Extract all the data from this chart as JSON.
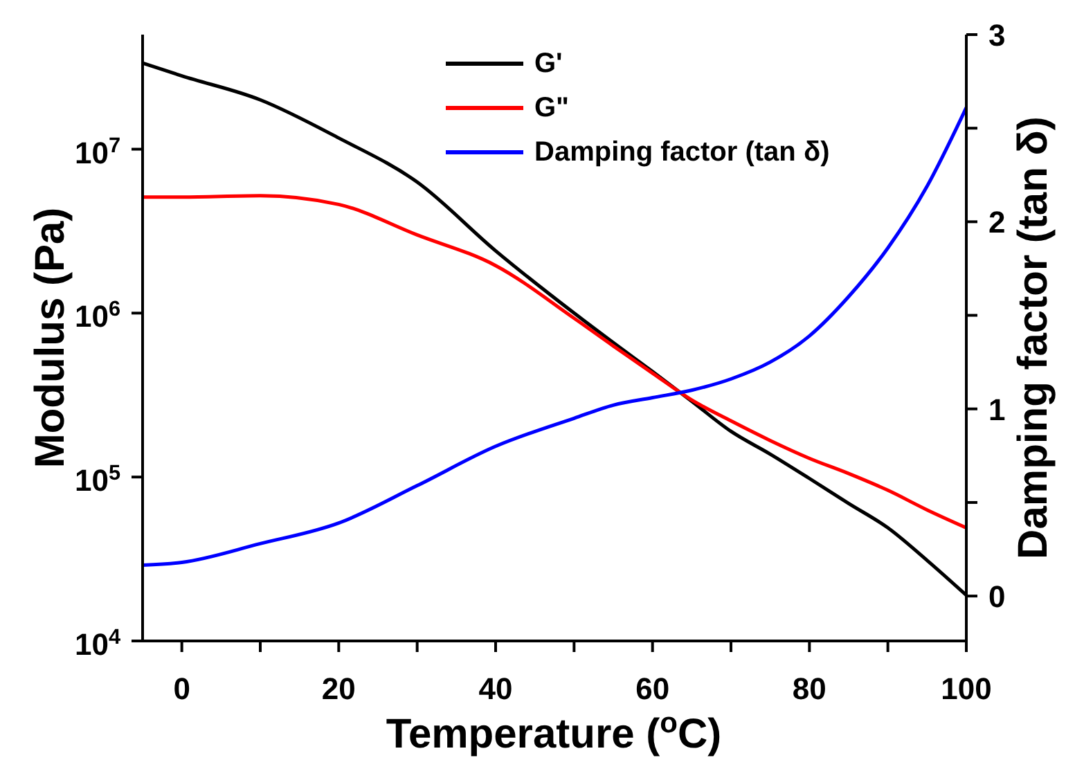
{
  "chart_data": {
    "type": "line",
    "xlabel": "Temperature ($^{o}$C)",
    "ylabel": "Modulus (Pa)",
    "y2label": "Damping factor (tan δ)",
    "x": [
      -5,
      0,
      10,
      20,
      30,
      40,
      50,
      55,
      60,
      65,
      70,
      75,
      80,
      85,
      90,
      95,
      100
    ],
    "series": [
      {
        "name": "G'",
        "color": "#000000",
        "values": [
          33500000,
          28000000,
          20000000,
          11700000,
          6300000,
          2400000,
          1000000,
          660000,
          440000,
          290000,
          190000,
          138000,
          98000,
          69000,
          49000,
          31000,
          19000
        ]
      },
      {
        "name": "G\"",
        "color": "#ff0000",
        "values": [
          5100000,
          5100000,
          5200000,
          4600000,
          3000000,
          1950000,
          930000,
          630000,
          430000,
          295000,
          220000,
          167000,
          130000,
          105000,
          83000,
          63000,
          49000
        ]
      },
      {
        "name": "Damping factor (tan δ)",
        "color": "#0000ff",
        "axis": "y2",
        "values": [
          0.165,
          0.18,
          0.28,
          0.39,
          0.59,
          0.8,
          0.95,
          1.02,
          1.06,
          1.1,
          1.16,
          1.25,
          1.39,
          1.6,
          1.86,
          2.19,
          2.61
        ]
      }
    ],
    "xlim": [
      -5,
      100
    ],
    "xticks": [
      0,
      {
        "value": 10,
        "label": null
      },
      20,
      {
        "value": 30,
        "label": null
      },
      40,
      {
        "value": 50,
        "label": null
      },
      60,
      {
        "value": 70,
        "label": null
      },
      80,
      {
        "value": 90,
        "label": null
      },
      100
    ],
    "log": "y",
    "ylim": [
      10000,
      50000000
    ],
    "yticks": [
      {
        "value": 10000,
        "label": "10$^{4}$"
      },
      {
        "value": 100000,
        "label": "10$^{5}$"
      },
      {
        "value": 1000000,
        "label": "10$^{6}$"
      },
      {
        "value": 10000000,
        "label": "10$^{7}$"
      }
    ],
    "y2lim": [
      -0.24,
      3
    ],
    "y2ticks": [
      0,
      {
        "value": 0.5,
        "label": null
      },
      1,
      {
        "value": 1.5,
        "label": null
      },
      2,
      {
        "value": 2.5,
        "label": null
      },
      3
    ],
    "legend": "top",
    "grid": false,
    "marker": "none",
    "line_style": "solid"
  }
}
